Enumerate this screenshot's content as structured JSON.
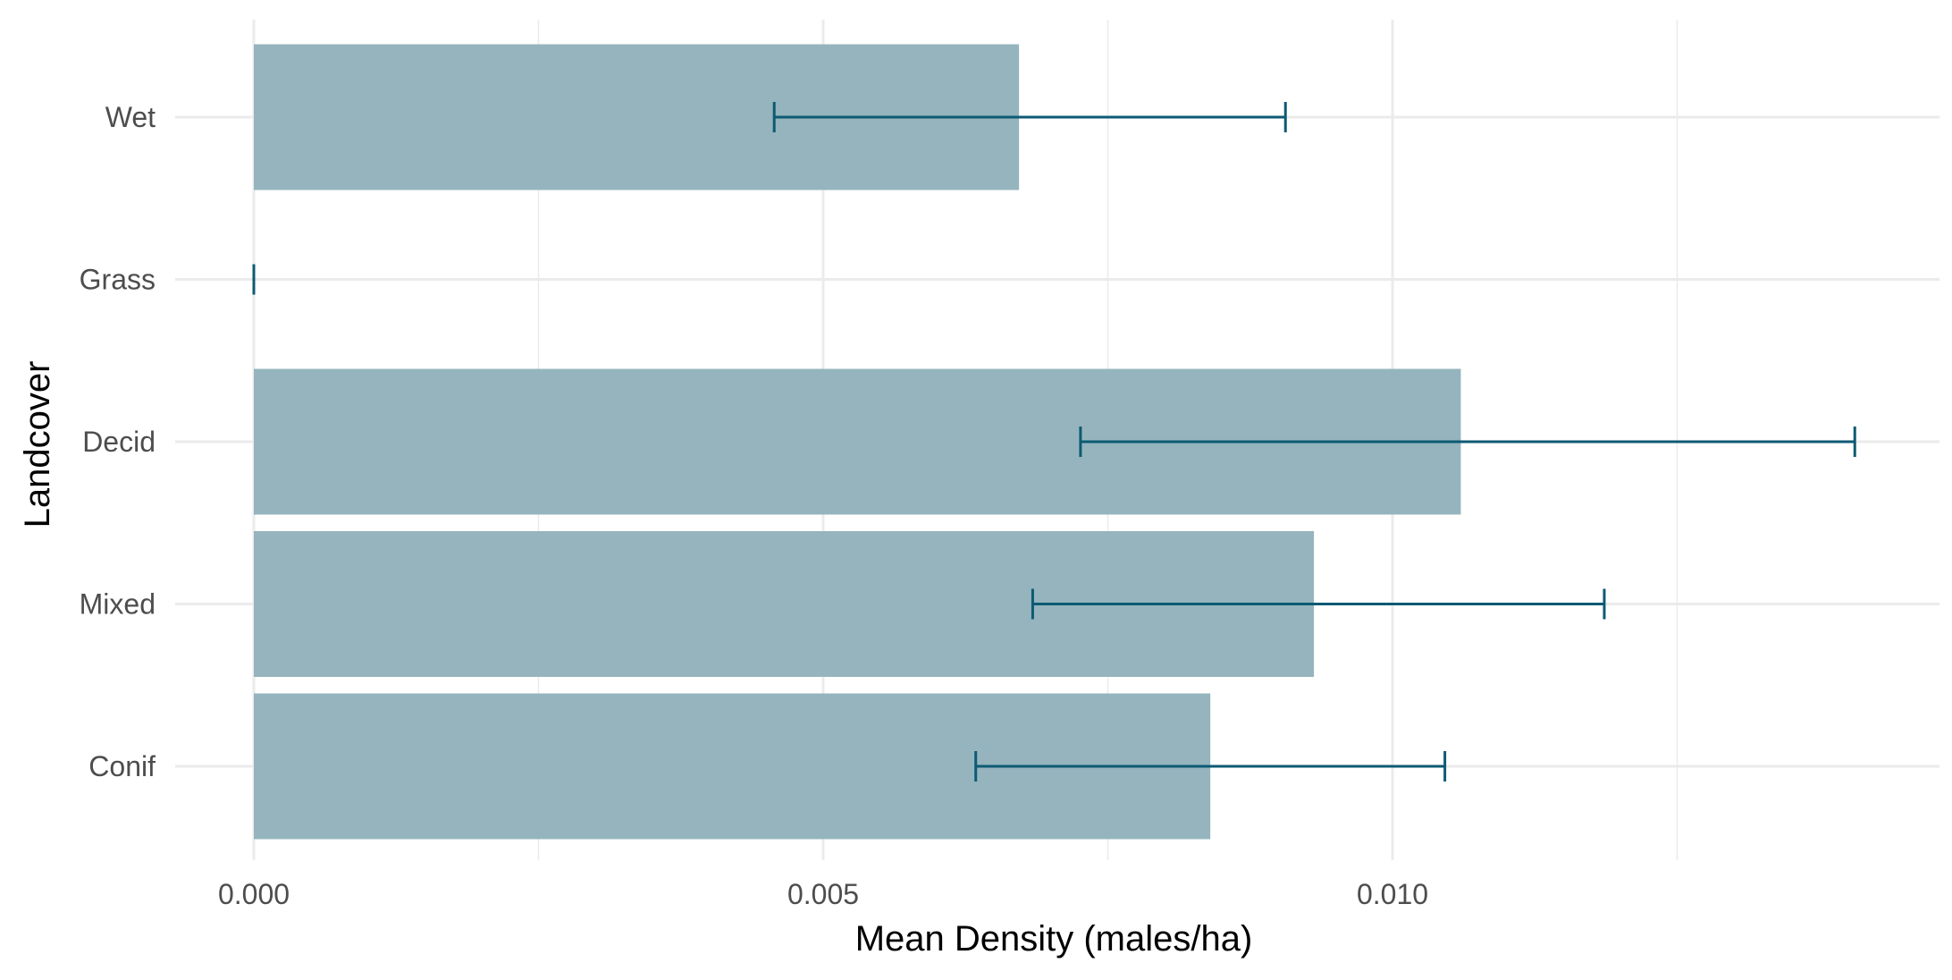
{
  "chart_data": {
    "type": "bar",
    "orientation": "horizontal",
    "xlabel": "Mean Density (males/ha)",
    "ylabel": "Landcover",
    "categories": [
      "Wet",
      "Grass",
      "Decid",
      "Mixed",
      "Conif"
    ],
    "values": [
      0.00672,
      0.0,
      0.0106,
      0.00931,
      0.0084
    ],
    "error_low": [
      0.00457,
      0.0,
      0.00726,
      0.00684,
      0.00634
    ],
    "error_high": [
      0.00906,
      0.0,
      0.01406,
      0.01186,
      0.01046
    ],
    "xlim": [
      -0.0007,
      0.0148
    ],
    "x_ticks": [
      0.0,
      0.005,
      0.01
    ],
    "x_tick_labels": [
      "0.000",
      "0.005",
      "0.010"
    ],
    "x_minor_ticks": [
      0.0025,
      0.0075,
      0.0125
    ],
    "grid": true,
    "theme": "minimal",
    "colors": {
      "bar": "#95b4be",
      "errorbar": "#0d5a73",
      "grid": "#ebebeb"
    }
  }
}
